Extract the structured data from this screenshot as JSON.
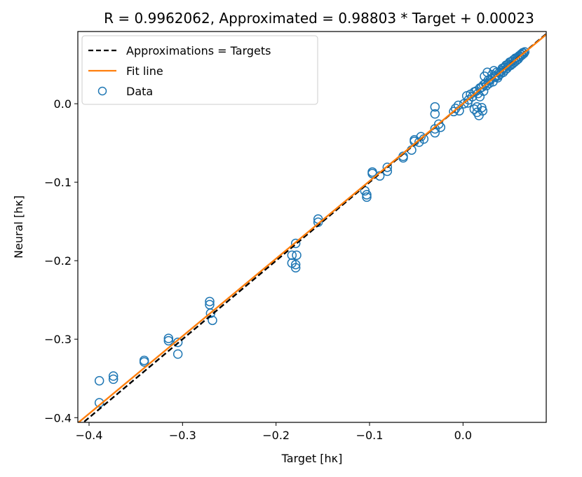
{
  "chart_data": {
    "type": "scatter",
    "title": "R = 0.9962062, Approximated = 0.98803 * Target + 0.00023",
    "xlabel": "Target [hκ]",
    "ylabel": "Neural [hκ]",
    "xlim": [
      -0.412,
      0.089
    ],
    "ylim": [
      -0.406,
      0.092
    ],
    "xticks": [
      -0.4,
      -0.3,
      -0.2,
      -0.1,
      0.0
    ],
    "yticks": [
      0.0,
      -0.1,
      -0.2,
      -0.3,
      -0.4
    ],
    "xtick_labels": [
      "−0.4",
      "−0.3",
      "−0.2",
      "−0.1",
      "0.0"
    ],
    "ytick_labels": [
      "0.0",
      "−0.1",
      "−0.2",
      "−0.3",
      "−0.4"
    ],
    "grid": false,
    "legend": {
      "placement": "top-left",
      "entries": [
        "Approximations = Targets",
        "Fit line",
        "Data"
      ]
    },
    "colors": {
      "data": "#1f77b4",
      "fit": "#ff7f0e",
      "identity": "#000000"
    },
    "identity_line": {
      "name": "Approximations = Targets",
      "slope": 1.0,
      "intercept": 0.0
    },
    "fit_line": {
      "name": "Fit line",
      "slope": 0.98803,
      "intercept": 0.00023
    },
    "series": [
      {
        "name": "Data",
        "points": [
          [
            -0.389,
            -0.353
          ],
          [
            -0.389,
            -0.381
          ],
          [
            -0.374,
            -0.347
          ],
          [
            -0.374,
            -0.351
          ],
          [
            -0.341,
            -0.327
          ],
          [
            -0.341,
            -0.329
          ],
          [
            -0.315,
            -0.299
          ],
          [
            -0.315,
            -0.302
          ],
          [
            -0.305,
            -0.304
          ],
          [
            -0.305,
            -0.319
          ],
          [
            -0.271,
            -0.252
          ],
          [
            -0.271,
            -0.256
          ],
          [
            -0.27,
            -0.267
          ],
          [
            -0.268,
            -0.276
          ],
          [
            -0.183,
            -0.193
          ],
          [
            -0.183,
            -0.203
          ],
          [
            -0.179,
            -0.178
          ],
          [
            -0.178,
            -0.193
          ],
          [
            -0.179,
            -0.205
          ],
          [
            -0.179,
            -0.209
          ],
          [
            -0.155,
            -0.147
          ],
          [
            -0.155,
            -0.151
          ],
          [
            -0.105,
            -0.111
          ],
          [
            -0.103,
            -0.116
          ],
          [
            -0.103,
            -0.119
          ],
          [
            -0.097,
            -0.087
          ],
          [
            -0.097,
            -0.089
          ],
          [
            -0.089,
            -0.092
          ],
          [
            -0.081,
            -0.081
          ],
          [
            -0.081,
            -0.086
          ],
          [
            -0.064,
            -0.067
          ],
          [
            -0.064,
            -0.069
          ],
          [
            -0.055,
            -0.059
          ],
          [
            -0.052,
            -0.046
          ],
          [
            -0.052,
            -0.048
          ],
          [
            -0.047,
            -0.049
          ],
          [
            -0.045,
            -0.042
          ],
          [
            -0.042,
            -0.045
          ],
          [
            -0.03,
            -0.004
          ],
          [
            -0.03,
            -0.013
          ],
          [
            -0.03,
            -0.032
          ],
          [
            -0.03,
            -0.037
          ],
          [
            -0.026,
            -0.026
          ],
          [
            -0.024,
            -0.03
          ],
          [
            -0.01,
            -0.01
          ],
          [
            -0.008,
            -0.006
          ],
          [
            -0.005,
            -0.002
          ],
          [
            -0.004,
            -0.009
          ],
          [
            0.001,
            0.0
          ],
          [
            0.004,
            0.01
          ],
          [
            0.005,
            0.001
          ],
          [
            0.006,
            0.005
          ],
          [
            0.008,
            0.012
          ],
          [
            0.01,
            0.009
          ],
          [
            0.012,
            0.015
          ],
          [
            0.012,
            -0.007
          ],
          [
            0.014,
            0.016
          ],
          [
            0.015,
            -0.004
          ],
          [
            0.015,
            -0.011
          ],
          [
            0.016,
            0.013
          ],
          [
            0.017,
            -0.015
          ],
          [
            0.018,
            0.02
          ],
          [
            0.018,
            0.009
          ],
          [
            0.02,
            0.021
          ],
          [
            0.02,
            -0.005
          ],
          [
            0.021,
            -0.009
          ],
          [
            0.022,
            0.024
          ],
          [
            0.022,
            0.016
          ],
          [
            0.023,
            0.035
          ],
          [
            0.024,
            0.026
          ],
          [
            0.025,
            0.023
          ],
          [
            0.026,
            0.04
          ],
          [
            0.027,
            0.03
          ],
          [
            0.028,
            0.026
          ],
          [
            0.029,
            0.03
          ],
          [
            0.03,
            0.032
          ],
          [
            0.031,
            0.037
          ],
          [
            0.032,
            0.028
          ],
          [
            0.033,
            0.042
          ],
          [
            0.034,
            0.035
          ],
          [
            0.035,
            0.034
          ],
          [
            0.036,
            0.04
          ],
          [
            0.037,
            0.033
          ],
          [
            0.038,
            0.036
          ],
          [
            0.039,
            0.04
          ],
          [
            0.04,
            0.038
          ],
          [
            0.041,
            0.042
          ],
          [
            0.042,
            0.045
          ],
          [
            0.043,
            0.04
          ],
          [
            0.044,
            0.046
          ],
          [
            0.045,
            0.043
          ],
          [
            0.046,
            0.049
          ],
          [
            0.047,
            0.045
          ],
          [
            0.048,
            0.05
          ],
          [
            0.049,
            0.048
          ],
          [
            0.05,
            0.053
          ],
          [
            0.051,
            0.049
          ],
          [
            0.052,
            0.054
          ],
          [
            0.053,
            0.051
          ],
          [
            0.054,
            0.056
          ],
          [
            0.055,
            0.053
          ],
          [
            0.056,
            0.058
          ],
          [
            0.057,
            0.055
          ],
          [
            0.058,
            0.059
          ],
          [
            0.059,
            0.057
          ],
          [
            0.06,
            0.061
          ],
          [
            0.061,
            0.06
          ],
          [
            0.062,
            0.063
          ],
          [
            0.063,
            0.062
          ],
          [
            0.064,
            0.065
          ],
          [
            0.065,
            0.064
          ],
          [
            0.066,
            0.066
          ]
        ]
      }
    ]
  }
}
